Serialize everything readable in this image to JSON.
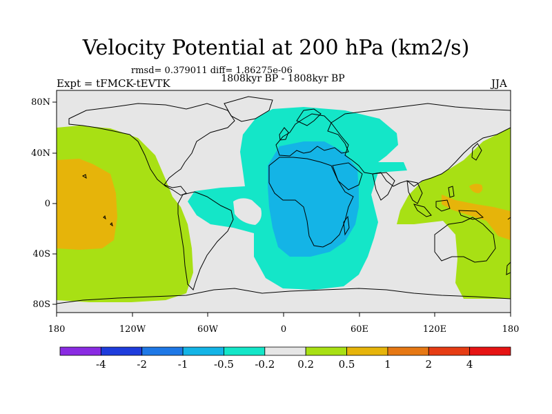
{
  "header": {
    "title": "Velocity Potential at 200 hPa (km2/s)",
    "stats": "rmsd= 0.379011  diff= 1.86275e-06",
    "experiment": "Expt = tFMCK-tEVTK",
    "period": "1808kyr BP - 1808kyr BP",
    "season": "JJA"
  },
  "axes": {
    "lon_labels": [
      "180",
      "120W",
      "60W",
      "0",
      "60E",
      "120E",
      "180"
    ],
    "lat_labels": [
      "80N",
      "40N",
      "0",
      "40S",
      "80S"
    ]
  },
  "colorbar": {
    "labels": [
      "-4",
      "-2",
      "-1",
      "-0.5",
      "-0.2",
      "0.2",
      "0.5",
      "1",
      "2",
      "4"
    ],
    "colors": [
      "#8a2be2",
      "#1e3cdc",
      "#1e78e6",
      "#14b4e6",
      "#14e6c8",
      "#e6e6e6",
      "#a8e014",
      "#e6b40a",
      "#e67814",
      "#e63c14",
      "#e61414"
    ]
  },
  "fields": {
    "background": "#e6e6e6",
    "teal": "#14e6c8",
    "blue": "#14b4e6",
    "green": "#a8e014",
    "orange": "#e6b40a",
    "coast": "#000000"
  }
}
